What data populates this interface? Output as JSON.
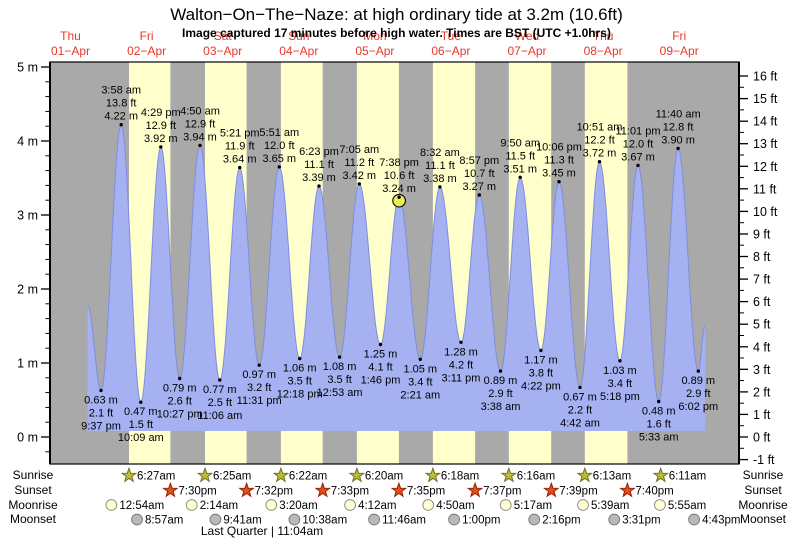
{
  "header": {
    "title": "Walton−On−The−Naze: at high  ordinary tide at 3.2m (10.6ft)",
    "subtitle": "Image captured 17 minutes before high water. Times are BST (UTC +1.0hrs)"
  },
  "colors": {
    "night_band": "#a9a9a9",
    "day_band": "#ffffcc",
    "tide_fill": "#a5b1f1",
    "tide_stroke": "#7e8ee0",
    "day_label": "#e8382a",
    "sunrise_star": "#b9bd3a",
    "sunrise_star_edge": "#6e7022",
    "sunset_star": "#e44d16",
    "sunset_star_edge": "#92230a",
    "moonrise_circle": "#ffffd2",
    "moonrise_circle_edge": "#8f8f8f",
    "moonset_circle": "#b9b9b9",
    "moonset_circle_edge": "#7a7a7a",
    "current_marker": "#ecec57"
  },
  "chart_data": {
    "type": "area",
    "title": "Walton−On−The−Naze: at high  ordinary tide at 3.2m (10.6ft)",
    "ylabel_left": "metres",
    "ylabel_right": "feet",
    "ylim_m": [
      -0.37,
      5.07
    ],
    "day_labels": [
      {
        "dow": "Thu",
        "date": "01−Apr"
      },
      {
        "dow": "Fri",
        "date": "02−Apr"
      },
      {
        "dow": "Sat",
        "date": "03−Apr"
      },
      {
        "dow": "Sun",
        "date": "04−Apr"
      },
      {
        "dow": "Mon",
        "date": "05−Apr"
      },
      {
        "dow": "Tue",
        "date": "06−Apr"
      },
      {
        "dow": "Wed",
        "date": "07−Apr"
      },
      {
        "dow": "Thu",
        "date": "08−Apr"
      },
      {
        "dow": "Fri",
        "date": "09−Apr"
      }
    ],
    "y_axis_left_ticks": [
      "5 m",
      "4 m",
      "3 m",
      "2 m",
      "1 m",
      "0 m"
    ],
    "y_axis_right_ticks": [
      "16 ft",
      "15 ft",
      "14 ft",
      "13 ft",
      "12 ft",
      "11 ft",
      "10 ft",
      "9 ft",
      "8 ft",
      "7 ft",
      "6 ft",
      "5 ft",
      "4 ft",
      "3 ft",
      "2 ft",
      "1 ft",
      "0 ft",
      "-1 ft"
    ],
    "curve_start": {
      "k": "edge",
      "d": 0,
      "hr": 17.4,
      "h": 1.78
    },
    "curve_end": {
      "k": "edge",
      "d": 8,
      "hr": 20.1,
      "h": 1.5
    },
    "tide_events": [
      {
        "k": "low",
        "d": 0,
        "hr": 21.617,
        "h": 0.63,
        "m": "0.63 m",
        "ft": "2.1 ft",
        "time": "9:37 pm"
      },
      {
        "k": "high",
        "d": 1,
        "hr": 3.967,
        "h": 4.22,
        "m": "4.22 m",
        "ft": "13.8 ft",
        "time": "3:58 am"
      },
      {
        "k": "low",
        "d": 1,
        "hr": 10.15,
        "h": 0.47,
        "m": "0.47 m",
        "ft": "1.5 ft",
        "time": "10:09 am"
      },
      {
        "k": "high",
        "d": 1,
        "hr": 16.483,
        "h": 3.92,
        "m": "3.92 m",
        "ft": "12.9 ft",
        "time": "4:29 pm"
      },
      {
        "k": "low",
        "d": 1,
        "hr": 22.45,
        "h": 0.79,
        "m": "0.79 m",
        "ft": "2.6 ft",
        "time": "10:27 pm"
      },
      {
        "k": "high",
        "d": 2,
        "hr": 4.833,
        "h": 3.94,
        "m": "3.94 m",
        "ft": "12.9 ft",
        "time": "4:50 am"
      },
      {
        "k": "low",
        "d": 2,
        "hr": 11.1,
        "h": 0.77,
        "m": "0.77 m",
        "ft": "2.5 ft",
        "time": "11:06 am"
      },
      {
        "k": "high",
        "d": 2,
        "hr": 17.35,
        "h": 3.64,
        "m": "3.64 m",
        "ft": "11.9 ft",
        "time": "5:21 pm"
      },
      {
        "k": "low",
        "d": 2,
        "hr": 23.517,
        "h": 0.97,
        "m": "0.97 m",
        "ft": "3.2 ft",
        "time": "11:31 pm"
      },
      {
        "k": "high",
        "d": 3,
        "hr": 5.85,
        "h": 3.65,
        "m": "3.65 m",
        "ft": "12.0 ft",
        "time": "5:51 am"
      },
      {
        "k": "low",
        "d": 3,
        "hr": 12.3,
        "h": 1.06,
        "m": "1.06 m",
        "ft": "3.5 ft",
        "time": "12:18 pm"
      },
      {
        "k": "high",
        "d": 3,
        "hr": 18.383,
        "h": 3.39,
        "m": "3.39 m",
        "ft": "11.1 ft",
        "time": "6:23 pm"
      },
      {
        "k": "low",
        "d": 4,
        "hr": 0.883,
        "h": 1.08,
        "m": "1.08 m",
        "ft": "3.5 ft",
        "time": "12:53 am"
      },
      {
        "k": "high",
        "d": 4,
        "hr": 7.083,
        "h": 3.42,
        "m": "3.42 m",
        "ft": "11.2 ft",
        "time": "7:05 am"
      },
      {
        "k": "low",
        "d": 4,
        "hr": 13.767,
        "h": 1.25,
        "m": "1.25 m",
        "ft": "4.1 ft",
        "time": "1:46 pm"
      },
      {
        "k": "high",
        "d": 4,
        "hr": 19.633,
        "h": 3.24,
        "m": "3.24 m",
        "ft": "10.6 ft",
        "time": "7:38 pm",
        "current": true
      },
      {
        "k": "low",
        "d": 5,
        "hr": 2.35,
        "h": 1.05,
        "m": "1.05 m",
        "ft": "3.4 ft",
        "time": "2:21 am"
      },
      {
        "k": "high",
        "d": 5,
        "hr": 8.533,
        "h": 3.38,
        "m": "3.38 m",
        "ft": "11.1 ft",
        "time": "8:32 am"
      },
      {
        "k": "low",
        "d": 5,
        "hr": 15.183,
        "h": 1.28,
        "m": "1.28 m",
        "ft": "4.2 ft",
        "time": "3:11 pm"
      },
      {
        "k": "high",
        "d": 5,
        "hr": 20.95,
        "h": 3.27,
        "m": "3.27 m",
        "ft": "10.7 ft",
        "time": "8:57 pm"
      },
      {
        "k": "low",
        "d": 6,
        "hr": 3.633,
        "h": 0.89,
        "m": "0.89 m",
        "ft": "2.9 ft",
        "time": "3:38 am"
      },
      {
        "k": "high",
        "d": 6,
        "hr": 9.833,
        "h": 3.51,
        "m": "3.51 m",
        "ft": "11.5 ft",
        "time": "9:50 am"
      },
      {
        "k": "low",
        "d": 6,
        "hr": 16.367,
        "h": 1.17,
        "m": "1.17 m",
        "ft": "3.8 ft",
        "time": "4:22 pm"
      },
      {
        "k": "high",
        "d": 6,
        "hr": 22.1,
        "h": 3.45,
        "m": "3.45 m",
        "ft": "11.3 ft",
        "time": "10:06 pm"
      },
      {
        "k": "low",
        "d": 7,
        "hr": 4.7,
        "h": 0.67,
        "m": "0.67 m",
        "ft": "2.2 ft",
        "time": "4:42 am"
      },
      {
        "k": "high",
        "d": 7,
        "hr": 10.85,
        "h": 3.72,
        "m": "3.72 m",
        "ft": "12.2 ft",
        "time": "10:51 am"
      },
      {
        "k": "low",
        "d": 7,
        "hr": 17.3,
        "h": 1.03,
        "m": "1.03 m",
        "ft": "3.4 ft",
        "time": "5:18 pm"
      },
      {
        "k": "high",
        "d": 7,
        "hr": 23.017,
        "h": 3.67,
        "m": "3.67 m",
        "ft": "12.0 ft",
        "time": "11:01 pm"
      },
      {
        "k": "low",
        "d": 8,
        "hr": 5.55,
        "h": 0.48,
        "m": "0.48 m",
        "ft": "1.6 ft",
        "time": "5:33 am"
      },
      {
        "k": "high",
        "d": 8,
        "hr": 11.667,
        "h": 3.9,
        "m": "3.90 m",
        "ft": "12.8 ft",
        "time": "11:40 am"
      },
      {
        "k": "low",
        "d": 8,
        "hr": 18.033,
        "h": 0.89,
        "m": "0.89 m",
        "ft": "2.9 ft",
        "time": "6:02 pm"
      }
    ],
    "current_note": "17 minutes before high water",
    "sun_moon": {
      "sunrise": {
        "label": "Sunrise",
        "items": [
          {
            "d": 1,
            "hr": 6.45,
            "time": "6:27am"
          },
          {
            "d": 2,
            "hr": 6.417,
            "time": "6:25am"
          },
          {
            "d": 3,
            "hr": 6.367,
            "time": "6:22am"
          },
          {
            "d": 4,
            "hr": 6.333,
            "time": "6:20am"
          },
          {
            "d": 5,
            "hr": 6.3,
            "time": "6:18am"
          },
          {
            "d": 6,
            "hr": 6.267,
            "time": "6:16am"
          },
          {
            "d": 7,
            "hr": 6.217,
            "time": "6:13am"
          },
          {
            "d": 8,
            "hr": 6.183,
            "time": "6:11am"
          }
        ]
      },
      "sunset": {
        "label": "Sunset",
        "items": [
          {
            "d": 1,
            "hr": 19.5,
            "time": "7:30pm"
          },
          {
            "d": 2,
            "hr": 19.533,
            "time": "7:32pm"
          },
          {
            "d": 3,
            "hr": 19.55,
            "time": "7:33pm"
          },
          {
            "d": 4,
            "hr": 19.583,
            "time": "7:35pm"
          },
          {
            "d": 5,
            "hr": 19.617,
            "time": "7:37pm"
          },
          {
            "d": 6,
            "hr": 19.65,
            "time": "7:39pm"
          },
          {
            "d": 7,
            "hr": 19.667,
            "time": "7:40pm"
          }
        ]
      },
      "moonrise": {
        "label": "Moonrise",
        "items": [
          {
            "d": 1,
            "hr": 0.9,
            "time": "12:54am"
          },
          {
            "d": 2,
            "hr": 2.233,
            "time": "2:14am"
          },
          {
            "d": 3,
            "hr": 3.333,
            "time": "3:20am"
          },
          {
            "d": 4,
            "hr": 4.2,
            "time": "4:12am"
          },
          {
            "d": 5,
            "hr": 4.833,
            "time": "4:50am"
          },
          {
            "d": 6,
            "hr": 5.283,
            "time": "5:17am"
          },
          {
            "d": 7,
            "hr": 5.65,
            "time": "5:39am"
          },
          {
            "d": 8,
            "hr": 5.917,
            "time": "5:55am"
          }
        ]
      },
      "moonset": {
        "label": "Moonset",
        "items": [
          {
            "d": 1,
            "hr": 8.95,
            "time": "8:57am"
          },
          {
            "d": 2,
            "hr": 9.683,
            "time": "9:41am"
          },
          {
            "d": 3,
            "hr": 10.633,
            "time": "10:38am"
          },
          {
            "d": 4,
            "hr": 11.767,
            "time": "11:46am"
          },
          {
            "d": 5,
            "hr": 13.0,
            "time": "1:00pm"
          },
          {
            "d": 6,
            "hr": 14.267,
            "time": "2:16pm"
          },
          {
            "d": 7,
            "hr": 15.517,
            "time": "3:31pm"
          },
          {
            "d": 8,
            "hr": 16.717,
            "time": "4:43pm"
          }
        ]
      }
    },
    "moon_phase": "Last Quarter | 11:04am"
  }
}
